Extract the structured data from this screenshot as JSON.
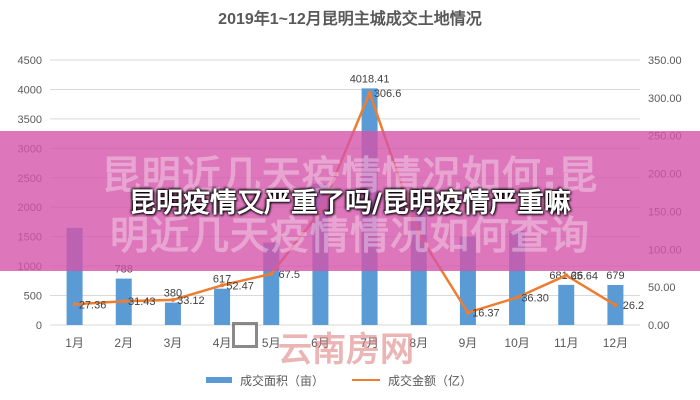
{
  "chart_data": {
    "type": "bar+line",
    "title": "2019年1~12月昆明主城成交土地情况",
    "categories": [
      "1月",
      "2月",
      "3月",
      "4月",
      "5月",
      "6月",
      "7月",
      "8月",
      "9月",
      "10月",
      "11月",
      "12月"
    ],
    "left_axis": {
      "min": 0,
      "max": 4500,
      "ticks": [
        "0",
        "500",
        "1000",
        "1500",
        "2000",
        "2500",
        "3000",
        "3500",
        "4000",
        "4500"
      ]
    },
    "right_axis": {
      "min": 0,
      "max": 350,
      "ticks": [
        "0.00",
        "50.00",
        "100.00",
        "150.00",
        "200.00",
        "250.00",
        "300.00",
        "350.00"
      ]
    },
    "series": [
      {
        "name": "成交面积（亩）",
        "type": "bar",
        "axis": "left",
        "color": "#5b9bd5",
        "values": [
          1650,
          788,
          380,
          617,
          1400,
          2400,
          4018.41,
          2300,
          1500,
          1600,
          681.26,
          679
        ],
        "labels": [
          "",
          "788",
          "380",
          "617",
          "",
          "",
          "4018.41",
          "",
          "",
          "",
          "681.26",
          "679"
        ]
      },
      {
        "name": "成交金额（亿）",
        "type": "line",
        "axis": "right",
        "color": "#ed7d31",
        "values": [
          27.36,
          31.43,
          33.12,
          52.47,
          67.5,
          150,
          306.6,
          120,
          16.37,
          36.3,
          65.64,
          26.2
        ],
        "labels": [
          "27.36",
          "31.43",
          "33.12",
          "52.47",
          "67.5",
          "",
          "306.6",
          "",
          "16.37",
          "36.30",
          "65.64",
          "26.2"
        ]
      }
    ]
  },
  "overlay": {
    "title": "昆明疫情又严重了吗/昆明疫情严重嘛",
    "ghost_line1": "昆明近几天疫情情况如何:昆",
    "ghost_line2": "明近几天疫情情况如何查询",
    "banner_color": "#d454aa",
    "watermark_text": "云南房网"
  }
}
